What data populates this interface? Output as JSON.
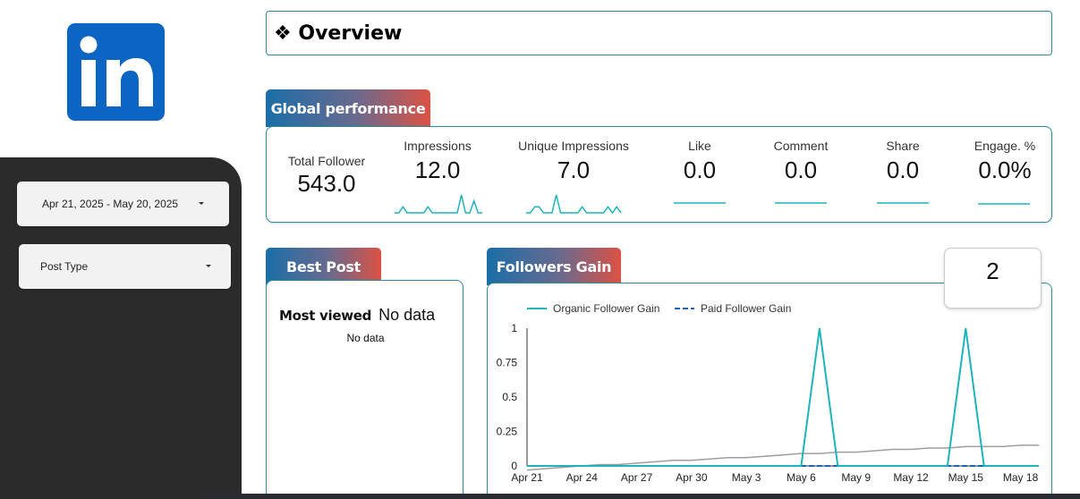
{
  "sidebar": {
    "date_range": "Apr 21, 2025 - May 20, 2025",
    "post_type_label": "Post Type"
  },
  "header": {
    "title": "❖ Overview"
  },
  "global_performance": {
    "tab_label": "Global performance",
    "metrics": [
      {
        "label": "Total Follower",
        "value": "543.0"
      },
      {
        "label": "Impressions",
        "value": "12.0"
      },
      {
        "label": "Unique Impressions",
        "value": "7.0"
      },
      {
        "label": "Like",
        "value": "0.0"
      },
      {
        "label": "Comment",
        "value": "0.0"
      },
      {
        "label": "Share",
        "value": "0.0"
      },
      {
        "label": "Engage. %",
        "value": "0.0%"
      }
    ],
    "accent_color": "#1fb3bd"
  },
  "best_post": {
    "tab_label": "Best Post",
    "most_viewed_label": "Most viewed",
    "most_viewed_value": "No data",
    "sub_text": "No data"
  },
  "followers_gain": {
    "tab_label": "Followers Gain",
    "score": "2"
  },
  "chart_data": {
    "type": "line",
    "title": "",
    "xlabel": "",
    "ylabel": "",
    "x_ticks": [
      "Apr 21",
      "Apr 24",
      "Apr 27",
      "Apr 30",
      "May 3",
      "May 6",
      "May 9",
      "May 12",
      "May 15",
      "May 18"
    ],
    "y_ticks": [
      "0",
      "0.25",
      "0.5",
      "0.75",
      "1"
    ],
    "ylim": [
      0,
      1
    ],
    "legend_position": "top-left",
    "x": [
      "Apr 21",
      "Apr 22",
      "Apr 23",
      "Apr 24",
      "Apr 25",
      "Apr 26",
      "Apr 27",
      "Apr 28",
      "Apr 29",
      "Apr 30",
      "May 1",
      "May 2",
      "May 3",
      "May 4",
      "May 5",
      "May 6",
      "May 7",
      "May 8",
      "May 9",
      "May 10",
      "May 11",
      "May 12",
      "May 13",
      "May 14",
      "May 15",
      "May 16",
      "May 17",
      "May 18",
      "May 19"
    ],
    "series": [
      {
        "name": "Organic Follower Gain",
        "color": "#1fb3bd",
        "style": "solid",
        "values": [
          0,
          0,
          0,
          0,
          0,
          0,
          0,
          0,
          0,
          0,
          0,
          0,
          0,
          0,
          0,
          0,
          1,
          0,
          0,
          0,
          0,
          0,
          0,
          0,
          1,
          0,
          0,
          0,
          0
        ]
      },
      {
        "name": "Paid Follower Gain",
        "color": "#1565c0",
        "style": "dashed",
        "values": [
          0,
          0,
          0,
          0,
          0,
          0,
          0,
          0,
          0,
          0,
          0,
          0,
          0,
          0,
          0,
          0,
          0,
          0,
          0,
          0,
          0,
          0,
          0,
          0,
          0,
          0,
          0,
          0,
          0
        ]
      },
      {
        "color": "#9e9e9e",
        "style": "solid",
        "trend": true,
        "values": [
          -0.03,
          -0.02,
          -0.01,
          0,
          0.01,
          0.01,
          0.02,
          0.03,
          0.04,
          0.04,
          0.05,
          0.06,
          0.06,
          0.07,
          0.08,
          0.09,
          0.09,
          0.1,
          0.1,
          0.11,
          0.12,
          0.12,
          0.13,
          0.13,
          0.14,
          0.14,
          0.14,
          0.15,
          0.15
        ]
      }
    ]
  },
  "sparklines": {
    "impressions": [
      0,
      0,
      1,
      0,
      0,
      0,
      0,
      0,
      1,
      0,
      0,
      0,
      0,
      0,
      0,
      0,
      3,
      0,
      0,
      2,
      0,
      0
    ],
    "unique_impressions": [
      0,
      0,
      1,
      1,
      0,
      0,
      0,
      3,
      0,
      0,
      0,
      0,
      0,
      1,
      0,
      0,
      0,
      0,
      0,
      1,
      0,
      1,
      0
    ]
  }
}
